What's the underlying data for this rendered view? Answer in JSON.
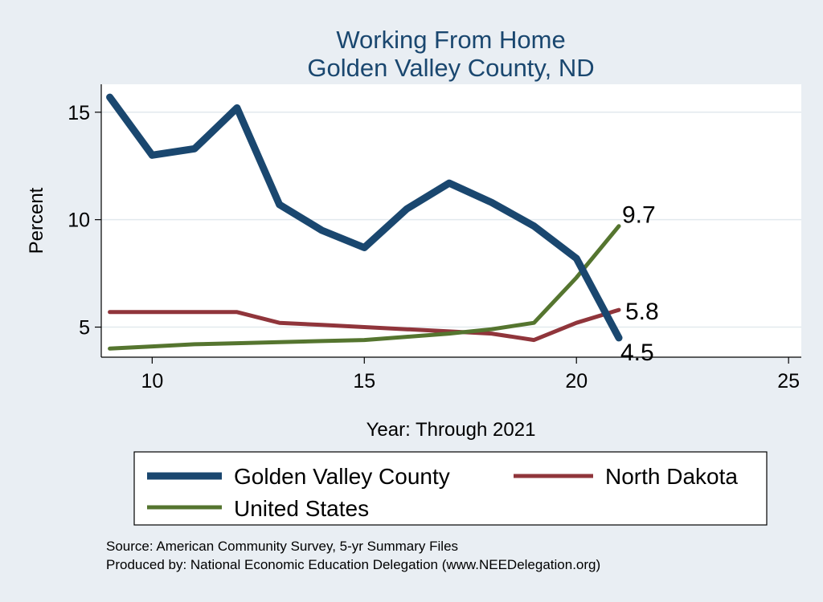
{
  "chart_data": {
    "type": "line",
    "title": "Working From Home",
    "subtitle": "Golden Valley County, ND",
    "xlabel": "Year: Through 2021",
    "ylabel": "Percent",
    "xlim": [
      8.8,
      25.3
    ],
    "ylim": [
      3.6,
      16.3
    ],
    "x_ticks": [
      10,
      15,
      20,
      25
    ],
    "y_ticks": [
      5,
      10,
      15
    ],
    "grid": "horizontal",
    "legend_position": "bottom",
    "x": [
      9,
      10,
      11,
      12,
      13,
      14,
      15,
      16,
      17,
      18,
      19,
      20,
      21
    ],
    "series": [
      {
        "name": "Golden Valley County",
        "color": "#1a476f",
        "values": [
          15.7,
          13.0,
          13.3,
          15.2,
          10.7,
          9.5,
          8.7,
          10.5,
          11.7,
          10.8,
          9.7,
          8.2,
          4.5
        ],
        "end_label": "4.5"
      },
      {
        "name": "North Dakota",
        "color": "#90353b",
        "values": [
          5.7,
          5.7,
          5.7,
          5.7,
          5.2,
          5.1,
          5.0,
          4.9,
          4.8,
          4.7,
          4.4,
          5.2,
          5.8
        ],
        "end_label": "5.8"
      },
      {
        "name": "United States",
        "color": "#55752f",
        "values": [
          4.0,
          4.1,
          4.2,
          4.25,
          4.3,
          4.35,
          4.4,
          4.55,
          4.7,
          4.9,
          5.2,
          7.3,
          9.7
        ],
        "end_label": "9.7"
      }
    ]
  },
  "colors": {
    "background": "#e9eef3",
    "plot_background": "#ffffff",
    "grid": "#e2e9ee",
    "title": "#1a476f",
    "text": "#000000"
  },
  "notes": [
    "Source: American Community Survey, 5-yr Summary Files",
    "Produced by: National Economic Education Delegation (www.NEEDelegation.org)"
  ]
}
